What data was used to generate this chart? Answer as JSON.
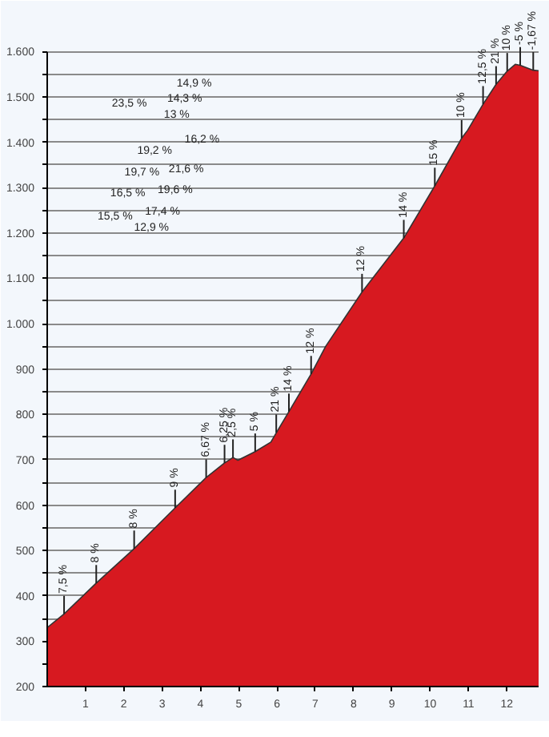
{
  "chart_data": {
    "type": "area",
    "x": [
      0,
      0.44,
      1.28,
      2.27,
      3.34,
      4.15,
      4.63,
      4.85,
      4.98,
      5.43,
      5.84,
      6.02,
      6.31,
      6.89,
      7.27,
      8.22,
      9.31,
      10.12,
      10.82,
      10.98,
      11.38,
      11.72,
      12.01,
      12.22,
      12.35,
      12.69,
      12.83
    ],
    "series": [
      {
        "color": "#d71920",
        "values": [
          330,
          360,
          428,
          504,
          594,
          661,
          693,
          705,
          699,
          718,
          739,
          765,
          806,
          889,
          950,
          1070,
          1189,
          1304,
          1409,
          1427,
          1484,
          1528,
          1557,
          1572,
          1570,
          1559,
          1558
        ]
      }
    ],
    "xlim": [
      0,
      12.83
    ],
    "xticks": [
      1,
      2,
      3,
      4,
      5,
      6,
      7,
      8,
      9,
      10,
      11,
      12
    ],
    "ylim": [
      200,
      1600
    ],
    "yticks": [
      {
        "value": 200,
        "label": "200"
      },
      {
        "value": 250,
        "label": null
      },
      {
        "value": 300,
        "label": "300"
      },
      {
        "value": 350,
        "label": null
      },
      {
        "value": 400,
        "label": "400"
      },
      {
        "value": 450,
        "label": null
      },
      {
        "value": 500,
        "label": "500"
      },
      {
        "value": 550,
        "label": null
      },
      {
        "value": 600,
        "label": "600"
      },
      {
        "value": 650,
        "label": null
      },
      {
        "value": 700,
        "label": "700"
      },
      {
        "value": 750,
        "label": null
      },
      {
        "value": 800,
        "label": "800"
      },
      {
        "value": 850,
        "label": null
      },
      {
        "value": 900,
        "label": "900"
      },
      {
        "value": 950,
        "label": null
      },
      {
        "value": 1000,
        "label": "1.000"
      },
      {
        "value": 1050,
        "label": null
      },
      {
        "value": 1100,
        "label": "1.100"
      },
      {
        "value": 1150,
        "label": null
      },
      {
        "value": 1200,
        "label": "1.200"
      },
      {
        "value": 1250,
        "label": null
      },
      {
        "value": 1300,
        "label": "1.300"
      },
      {
        "value": 1350,
        "label": null
      },
      {
        "value": 1400,
        "label": "1.400"
      },
      {
        "value": 1450,
        "label": null
      },
      {
        "value": 1500,
        "label": "1.500"
      },
      {
        "value": 1550,
        "label": null
      },
      {
        "value": 1600,
        "label": "1.600"
      }
    ],
    "grid": "y",
    "annotations": [
      {
        "text": "7,5 %",
        "x": 0.44,
        "y": 360
      },
      {
        "text": "8 %",
        "x": 1.28,
        "y": 428
      },
      {
        "text": "8 %",
        "x": 2.27,
        "y": 504
      },
      {
        "text": "9 %",
        "x": 3.34,
        "y": 594
      },
      {
        "text": "6,67 %",
        "x": 4.15,
        "y": 661
      },
      {
        "text": "6,25 %",
        "x": 4.63,
        "y": 693
      },
      {
        "text": "2,5 %",
        "x": 4.85,
        "y": 705
      },
      {
        "text": "5 %",
        "x": 5.43,
        "y": 718
      },
      {
        "text": "21 %",
        "x": 5.98,
        "y": 760
      },
      {
        "text": "14 %",
        "x": 6.31,
        "y": 806
      },
      {
        "text": "12 %",
        "x": 6.89,
        "y": 889
      },
      {
        "text": "12 %",
        "x": 8.22,
        "y": 1070
      },
      {
        "text": "14 %",
        "x": 9.31,
        "y": 1189
      },
      {
        "text": "15 %",
        "x": 10.12,
        "y": 1304
      },
      {
        "text": "10 %",
        "x": 10.82,
        "y": 1409
      },
      {
        "text": "12,5 %",
        "x": 11.38,
        "y": 1484
      },
      {
        "text": "21 %",
        "x": 11.72,
        "y": 1528
      },
      {
        "text": "10 %",
        "x": 12.01,
        "y": 1557
      },
      {
        "text": "-5 %",
        "x": 12.35,
        "y": 1570
      },
      {
        "text": "-1,67 %",
        "x": 12.69,
        "y": 1559
      },
      "14,9 %",
      "14,3 %",
      "13 %",
      "23,5 %",
      "16,2 %",
      "19,2 %",
      "21,6 %",
      "19,7 %",
      "16,5 %",
      "19,6 %",
      "15,5 %",
      "17,4 %",
      "12,9 %"
    ]
  }
}
